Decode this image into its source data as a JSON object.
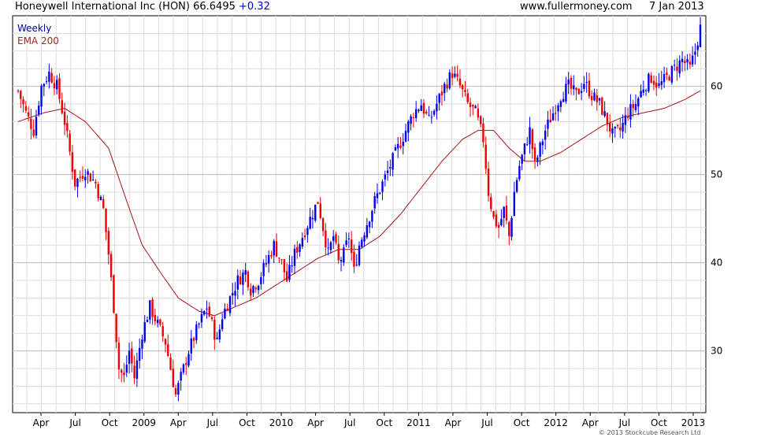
{
  "header": {
    "title": "Honeywell International Inc (HON) 66.6495",
    "change": "+0.32",
    "site": "www.fullermoney.com",
    "date": "7 Jan 2013"
  },
  "legend": {
    "weekly": "Weekly",
    "ema": "EMA 200"
  },
  "copyright": "© 2013 Stockcube Research Ltd",
  "colors": {
    "up": "#0000ee",
    "down": "#ee0000",
    "ema": "#aa1111",
    "grid": "#dddddd",
    "label_weekly": "#0000aa",
    "label_ema": "#aa2222"
  },
  "chart_data": {
    "type": "candlestick",
    "title": "Honeywell International Inc (HON) 66.6495 +0.32",
    "period": "Weekly",
    "x_tick_labels": [
      "Apr",
      "Jul",
      "Oct",
      "2009",
      "Apr",
      "Jul",
      "Oct",
      "2010",
      "Apr",
      "Jul",
      "Oct",
      "2011",
      "Apr",
      "Jul",
      "Oct",
      "2012",
      "Apr",
      "Jul",
      "Oct",
      "2013"
    ],
    "y_ticks": [
      30,
      40,
      50,
      60
    ],
    "ylim": [
      23,
      68
    ],
    "grid": true,
    "close_path": [
      {
        "d": 0,
        "v": 59.5
      },
      {
        "d": 3,
        "v": 57
      },
      {
        "d": 6,
        "v": 55
      },
      {
        "d": 9,
        "v": 60
      },
      {
        "d": 12,
        "v": 61.5
      },
      {
        "d": 15,
        "v": 60
      },
      {
        "d": 18,
        "v": 56
      },
      {
        "d": 22,
        "v": 49
      },
      {
        "d": 26,
        "v": 50.5
      },
      {
        "d": 30,
        "v": 49
      },
      {
        "d": 33,
        "v": 46
      },
      {
        "d": 35,
        "v": 41
      },
      {
        "d": 37,
        "v": 35
      },
      {
        "d": 39,
        "v": 28
      },
      {
        "d": 41,
        "v": 27
      },
      {
        "d": 43,
        "v": 30
      },
      {
        "d": 45,
        "v": 27
      },
      {
        "d": 48,
        "v": 32
      },
      {
        "d": 51,
        "v": 35
      },
      {
        "d": 54,
        "v": 33
      },
      {
        "d": 57,
        "v": 31
      },
      {
        "d": 59,
        "v": 28
      },
      {
        "d": 61,
        "v": 25
      },
      {
        "d": 63,
        "v": 27
      },
      {
        "d": 66,
        "v": 30
      },
      {
        "d": 70,
        "v": 33
      },
      {
        "d": 73,
        "v": 35
      },
      {
        "d": 75,
        "v": 33
      },
      {
        "d": 77,
        "v": 31
      },
      {
        "d": 79,
        "v": 34
      },
      {
        "d": 82,
        "v": 36
      },
      {
        "d": 85,
        "v": 38
      },
      {
        "d": 88,
        "v": 39
      },
      {
        "d": 90,
        "v": 37
      },
      {
        "d": 93,
        "v": 38
      },
      {
        "d": 96,
        "v": 40
      },
      {
        "d": 99,
        "v": 42
      },
      {
        "d": 102,
        "v": 40
      },
      {
        "d": 104,
        "v": 38
      },
      {
        "d": 107,
        "v": 41
      },
      {
        "d": 110,
        "v": 43
      },
      {
        "d": 113,
        "v": 45
      },
      {
        "d": 116,
        "v": 47
      },
      {
        "d": 118,
        "v": 44
      },
      {
        "d": 120,
        "v": 41
      },
      {
        "d": 122,
        "v": 43
      },
      {
        "d": 124,
        "v": 40
      },
      {
        "d": 126,
        "v": 41
      },
      {
        "d": 128,
        "v": 43
      },
      {
        "d": 130,
        "v": 39
      },
      {
        "d": 132,
        "v": 42
      },
      {
        "d": 135,
        "v": 44.5
      },
      {
        "d": 138,
        "v": 47
      },
      {
        "d": 141,
        "v": 49
      },
      {
        "d": 144,
        "v": 51
      },
      {
        "d": 147,
        "v": 53
      },
      {
        "d": 150,
        "v": 55
      },
      {
        "d": 153,
        "v": 57
      },
      {
        "d": 156,
        "v": 58
      },
      {
        "d": 159,
        "v": 56
      },
      {
        "d": 162,
        "v": 58
      },
      {
        "d": 165,
        "v": 60
      },
      {
        "d": 168,
        "v": 61.5
      },
      {
        "d": 171,
        "v": 60
      },
      {
        "d": 174,
        "v": 58
      },
      {
        "d": 177,
        "v": 57
      },
      {
        "d": 180,
        "v": 54
      },
      {
        "d": 182,
        "v": 48
      },
      {
        "d": 184,
        "v": 45
      },
      {
        "d": 186,
        "v": 44
      },
      {
        "d": 188,
        "v": 46
      },
      {
        "d": 190,
        "v": 43
      },
      {
        "d": 192,
        "v": 48
      },
      {
        "d": 194,
        "v": 51
      },
      {
        "d": 196,
        "v": 53
      },
      {
        "d": 198,
        "v": 55
      },
      {
        "d": 200,
        "v": 51
      },
      {
        "d": 202,
        "v": 53
      },
      {
        "d": 204,
        "v": 55
      },
      {
        "d": 207,
        "v": 57
      },
      {
        "d": 210,
        "v": 59
      },
      {
        "d": 213,
        "v": 60
      },
      {
        "d": 216,
        "v": 59
      },
      {
        "d": 219,
        "v": 60.5
      },
      {
        "d": 222,
        "v": 59
      },
      {
        "d": 225,
        "v": 58
      },
      {
        "d": 228,
        "v": 56
      },
      {
        "d": 230,
        "v": 54.5
      },
      {
        "d": 233,
        "v": 55
      },
      {
        "d": 236,
        "v": 57
      },
      {
        "d": 239,
        "v": 58
      },
      {
        "d": 242,
        "v": 60
      },
      {
        "d": 245,
        "v": 61
      },
      {
        "d": 248,
        "v": 60
      },
      {
        "d": 251,
        "v": 61
      },
      {
        "d": 254,
        "v": 62
      },
      {
        "d": 257,
        "v": 63
      },
      {
        "d": 260,
        "v": 62
      },
      {
        "d": 262,
        "v": 64
      },
      {
        "d": 264,
        "v": 66.6
      }
    ],
    "ema_path": [
      {
        "d": 0,
        "v": 56
      },
      {
        "d": 10,
        "v": 57
      },
      {
        "d": 18,
        "v": 57.5
      },
      {
        "d": 26,
        "v": 56
      },
      {
        "d": 35,
        "v": 53
      },
      {
        "d": 42,
        "v": 47
      },
      {
        "d": 48,
        "v": 42
      },
      {
        "d": 56,
        "v": 38.5
      },
      {
        "d": 62,
        "v": 36
      },
      {
        "d": 70,
        "v": 34.5
      },
      {
        "d": 76,
        "v": 34
      },
      {
        "d": 84,
        "v": 35
      },
      {
        "d": 92,
        "v": 36
      },
      {
        "d": 100,
        "v": 37.5
      },
      {
        "d": 108,
        "v": 39
      },
      {
        "d": 116,
        "v": 40.5
      },
      {
        "d": 124,
        "v": 41.5
      },
      {
        "d": 132,
        "v": 41.5
      },
      {
        "d": 140,
        "v": 43
      },
      {
        "d": 148,
        "v": 45.5
      },
      {
        "d": 156,
        "v": 48.5
      },
      {
        "d": 164,
        "v": 51.5
      },
      {
        "d": 172,
        "v": 54
      },
      {
        "d": 178,
        "v": 55
      },
      {
        "d": 184,
        "v": 55
      },
      {
        "d": 190,
        "v": 53
      },
      {
        "d": 196,
        "v": 51.5
      },
      {
        "d": 202,
        "v": 51.5
      },
      {
        "d": 210,
        "v": 52.5
      },
      {
        "d": 218,
        "v": 54
      },
      {
        "d": 226,
        "v": 55.5
      },
      {
        "d": 234,
        "v": 56.5
      },
      {
        "d": 242,
        "v": 57
      },
      {
        "d": 250,
        "v": 57.5
      },
      {
        "d": 258,
        "v": 58.5
      },
      {
        "d": 264,
        "v": 59.5
      }
    ],
    "weeks": 265
  }
}
